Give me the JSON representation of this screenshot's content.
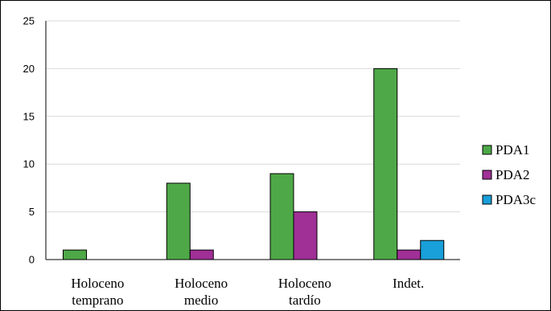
{
  "chart_data": {
    "type": "bar",
    "categories": [
      [
        "Holoceno",
        "temprano"
      ],
      [
        "Holoceno",
        "medio"
      ],
      [
        "Holoceno",
        "tardío"
      ],
      [
        "Indet."
      ]
    ],
    "series": [
      {
        "name": "PDA1",
        "color": "#4ea847",
        "values": [
          1,
          8,
          9,
          20
        ]
      },
      {
        "name": "PDA2",
        "color": "#a02f96",
        "values": [
          0,
          1,
          5,
          1
        ]
      },
      {
        "name": "PDA3c",
        "color": "#199fd9",
        "values": [
          0,
          0,
          0,
          2
        ]
      }
    ],
    "ylim": [
      0,
      25
    ],
    "yticks": [
      0,
      5,
      10,
      15,
      20,
      25
    ],
    "grid": true,
    "legend_position": "right"
  }
}
